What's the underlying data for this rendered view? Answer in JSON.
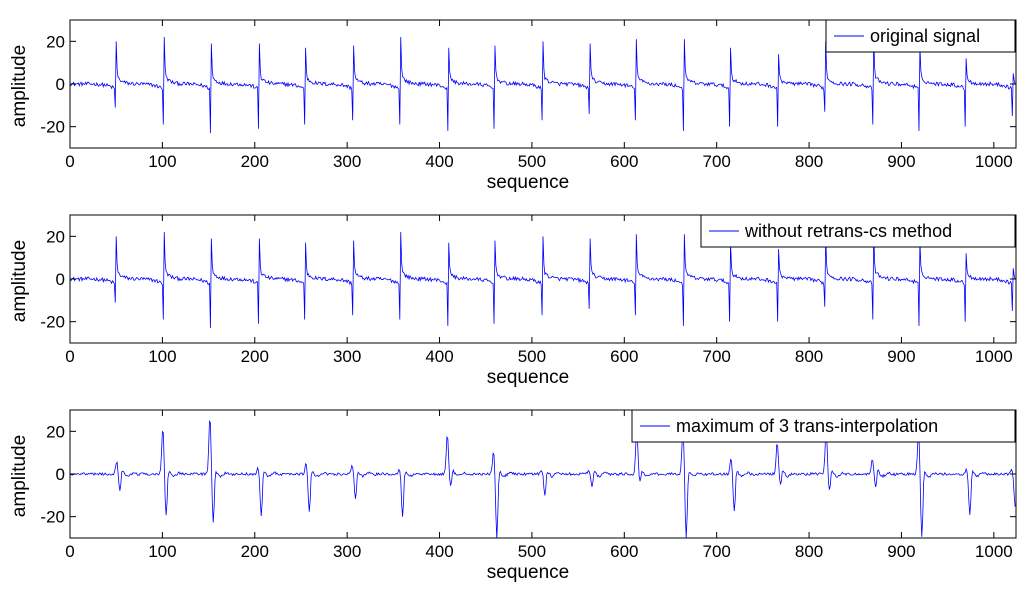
{
  "chart_data": [
    {
      "type": "line",
      "title": "",
      "xlabel": "sequence",
      "ylabel": "amplitude",
      "xlim": [
        0,
        1024
      ],
      "ylim": [
        -30,
        30
      ],
      "xticks": [
        0,
        100,
        200,
        300,
        400,
        500,
        600,
        700,
        800,
        900,
        1000
      ],
      "yticks": [
        -20,
        0,
        20
      ],
      "grid": false,
      "legend": "top-right",
      "series": [
        {
          "name": "original signal",
          "color": "#0000ff",
          "spikes": [
            {
              "x": 50,
              "peak": 20,
              "trough": -11
            },
            {
              "x": 102,
              "peak": 22,
              "trough": -19
            },
            {
              "x": 153,
              "peak": 19,
              "trough": -23
            },
            {
              "x": 205,
              "peak": 19,
              "trough": -21
            },
            {
              "x": 255,
              "peak": 17,
              "trough": -19
            },
            {
              "x": 307,
              "peak": 18,
              "trough": -17
            },
            {
              "x": 358,
              "peak": 22,
              "trough": -19
            },
            {
              "x": 410,
              "peak": 17,
              "trough": -22
            },
            {
              "x": 460,
              "peak": 18,
              "trough": -21
            },
            {
              "x": 512,
              "peak": 20,
              "trough": -17
            },
            {
              "x": 563,
              "peak": 19,
              "trough": -14
            },
            {
              "x": 613,
              "peak": 21,
              "trough": -17
            },
            {
              "x": 665,
              "peak": 21,
              "trough": -22
            },
            {
              "x": 715,
              "peak": 17,
              "trough": -20
            },
            {
              "x": 767,
              "peak": 14,
              "trough": -20
            },
            {
              "x": 818,
              "peak": 20,
              "trough": -13
            },
            {
              "x": 870,
              "peak": 22,
              "trough": -19
            },
            {
              "x": 920,
              "peak": 18,
              "trough": -22
            },
            {
              "x": 970,
              "peak": 12,
              "trough": -20
            },
            {
              "x": 1021,
              "peak": 5,
              "trough": -15
            }
          ]
        }
      ]
    },
    {
      "type": "line",
      "title": "",
      "xlabel": "sequence",
      "ylabel": "amplitude",
      "xlim": [
        0,
        1024
      ],
      "ylim": [
        -30,
        30
      ],
      "xticks": [
        0,
        100,
        200,
        300,
        400,
        500,
        600,
        700,
        800,
        900,
        1000
      ],
      "yticks": [
        -20,
        0,
        20
      ],
      "grid": false,
      "legend": "top-right",
      "series": [
        {
          "name": "without retrans-cs method",
          "color": "#0000ff",
          "spikes": [
            {
              "x": 50,
              "peak": 20,
              "trough": -11
            },
            {
              "x": 102,
              "peak": 22,
              "trough": -19
            },
            {
              "x": 153,
              "peak": 19,
              "trough": -23
            },
            {
              "x": 205,
              "peak": 19,
              "trough": -21
            },
            {
              "x": 255,
              "peak": 17,
              "trough": -19
            },
            {
              "x": 307,
              "peak": 18,
              "trough": -17
            },
            {
              "x": 358,
              "peak": 22,
              "trough": -19
            },
            {
              "x": 410,
              "peak": 17,
              "trough": -22
            },
            {
              "x": 460,
              "peak": 18,
              "trough": -21
            },
            {
              "x": 512,
              "peak": 20,
              "trough": -17
            },
            {
              "x": 563,
              "peak": 19,
              "trough": -14
            },
            {
              "x": 613,
              "peak": 21,
              "trough": -17
            },
            {
              "x": 665,
              "peak": 21,
              "trough": -22
            },
            {
              "x": 715,
              "peak": 17,
              "trough": -20
            },
            {
              "x": 767,
              "peak": 14,
              "trough": -20
            },
            {
              "x": 818,
              "peak": 20,
              "trough": -13
            },
            {
              "x": 870,
              "peak": 22,
              "trough": -19
            },
            {
              "x": 920,
              "peak": 18,
              "trough": -22
            },
            {
              "x": 970,
              "peak": 12,
              "trough": -20
            },
            {
              "x": 1021,
              "peak": 5,
              "trough": -15
            }
          ]
        }
      ]
    },
    {
      "type": "line",
      "title": "",
      "xlabel": "sequence",
      "ylabel": "amplitude",
      "xlim": [
        0,
        1024
      ],
      "ylim": [
        -30,
        30
      ],
      "xticks": [
        0,
        100,
        200,
        300,
        400,
        500,
        600,
        700,
        800,
        900,
        1000
      ],
      "yticks": [
        -20,
        0,
        20
      ],
      "grid": false,
      "legend": "top-right",
      "series": [
        {
          "name": "maximum of 3 trans-interpolation",
          "color": "#0000ff",
          "spikes": [
            {
              "x": 52,
              "peak": 6,
              "trough": -8
            },
            {
              "x": 102,
              "peak": 22,
              "trough": -20
            },
            {
              "x": 153,
              "peak": 27,
              "trough": -23
            },
            {
              "x": 205,
              "peak": 3,
              "trough": -20
            },
            {
              "x": 257,
              "peak": 5,
              "trough": -18
            },
            {
              "x": 307,
              "peak": 4,
              "trough": -12
            },
            {
              "x": 358,
              "peak": 2,
              "trough": -20
            },
            {
              "x": 410,
              "peak": 19,
              "trough": -6
            },
            {
              "x": 460,
              "peak": 11,
              "trough": -30
            },
            {
              "x": 512,
              "peak": 2,
              "trough": -10
            },
            {
              "x": 563,
              "peak": 2,
              "trough": -6
            },
            {
              "x": 615,
              "peak": 22,
              "trough": -3
            },
            {
              "x": 665,
              "peak": 22,
              "trough": -30
            },
            {
              "x": 717,
              "peak": 8,
              "trough": -18
            },
            {
              "x": 767,
              "peak": 15,
              "trough": -5
            },
            {
              "x": 820,
              "peak": 21,
              "trough": -8
            },
            {
              "x": 870,
              "peak": 7,
              "trough": -6
            },
            {
              "x": 920,
              "peak": 20,
              "trough": -30
            },
            {
              "x": 972,
              "peak": 2,
              "trough": -19
            },
            {
              "x": 1021,
              "peak": 2,
              "trough": -15
            }
          ]
        }
      ]
    }
  ]
}
